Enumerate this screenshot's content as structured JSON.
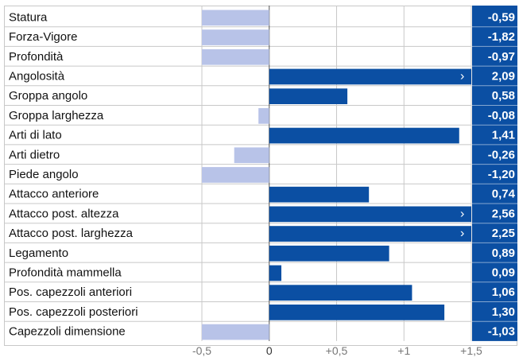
{
  "chart_data": {
    "type": "bar",
    "orientation": "horizontal",
    "categories": [
      "Statura",
      "Forza-Vigore",
      "Profondità",
      "Angolosità",
      "Groppa angolo",
      "Groppa larghezza",
      "Arti di lato",
      "Arti dietro",
      "Piede angolo",
      "Attacco anteriore",
      "Attacco post. altezza",
      "Attacco post. larghezza",
      "Legamento",
      "Profondità mammella",
      "Pos. capezzoli anteriori",
      "Pos. capezzoli posteriori",
      "Capezzoli dimensione"
    ],
    "values": [
      -0.59,
      -1.82,
      -0.97,
      2.09,
      0.58,
      -0.08,
      1.41,
      -0.26,
      -1.2,
      0.74,
      2.56,
      2.25,
      0.89,
      0.09,
      1.06,
      1.3,
      -1.03
    ],
    "value_labels": [
      "-0,59",
      "-1,82",
      "-0,97",
      "2,09",
      "0,58",
      "-0,08",
      "1,41",
      "-0,26",
      "-1,20",
      "0,74",
      "2,56",
      "2,25",
      "0,89",
      "0,09",
      "1,06",
      "1,30",
      "-1,03"
    ],
    "xlim": [
      -0.5,
      1.5
    ],
    "x_ticks": [
      -0.5,
      0,
      0.5,
      1,
      1.5
    ],
    "x_tick_labels": [
      "-0,5",
      "0",
      "+0,5",
      "+1",
      "+1,5"
    ],
    "overflow_marker": "›",
    "grid": true,
    "colors": {
      "positive": "#0b4fa3",
      "negative": "#b8c3e8",
      "value_box": "#0b4fa3",
      "value_text": "#ffffff",
      "grid": "#c8c8c8",
      "zero_line": "#555555"
    }
  }
}
